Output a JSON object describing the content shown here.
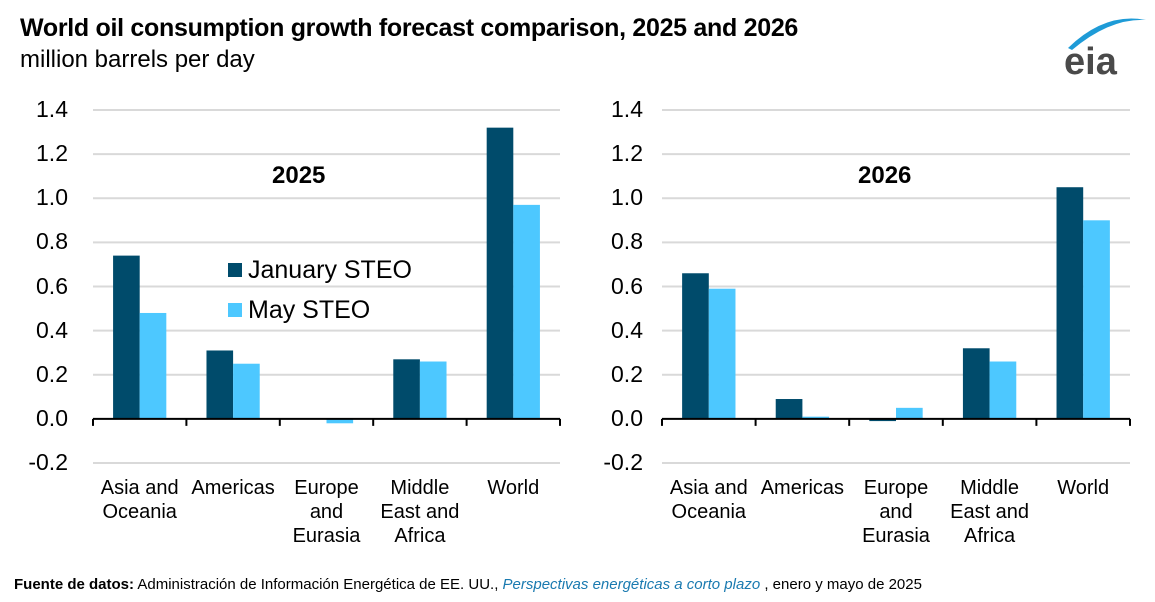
{
  "header": {
    "title": "World oil consumption growth forecast comparison, 2025 and 2026",
    "subtitle": "million barrels per day",
    "logo_text": "eia"
  },
  "colors": {
    "january": "#004b6b",
    "may": "#4dc8ff",
    "grid": "#d9d9d9",
    "axis": "#000000",
    "logo_arc": "#1e9bd7",
    "logo_text": "#4a4a4a"
  },
  "legend": {
    "january_label": "January STEO",
    "may_label": "May STEO"
  },
  "chart_data": [
    {
      "type": "bar",
      "title": "2025",
      "xlabel": "",
      "ylabel": "million barrels per day",
      "ylim": [
        -0.2,
        1.4
      ],
      "yticks": [
        "1.4",
        "1.2",
        "1.0",
        "0.8",
        "0.6",
        "0.4",
        "0.2",
        "0.0",
        "-0.2"
      ],
      "grid": true,
      "legend_position": "center",
      "categories": [
        "Asia and\nOceania",
        "Americas",
        "Europe\nand\nEurasia",
        "Middle\nEast and\nAfrica",
        "World"
      ],
      "series": [
        {
          "name": "January STEO",
          "values": [
            0.74,
            0.31,
            0.0,
            0.27,
            1.32
          ]
        },
        {
          "name": "May STEO",
          "values": [
            0.48,
            0.25,
            -0.02,
            0.26,
            0.97
          ]
        }
      ]
    },
    {
      "type": "bar",
      "title": "2026",
      "xlabel": "",
      "ylabel": "million barrels per day",
      "ylim": [
        -0.2,
        1.4
      ],
      "yticks": [
        "1.4",
        "1.2",
        "1.0",
        "0.8",
        "0.6",
        "0.4",
        "0.2",
        "0.0",
        "-0.2"
      ],
      "grid": true,
      "categories": [
        "Asia and\nOceania",
        "Americas",
        "Europe\nand\nEurasia",
        "Middle\nEast and\nAfrica",
        "World"
      ],
      "series": [
        {
          "name": "January STEO",
          "values": [
            0.66,
            0.09,
            -0.01,
            0.32,
            1.05
          ]
        },
        {
          "name": "May STEO",
          "values": [
            0.59,
            0.01,
            0.05,
            0.26,
            0.9
          ]
        }
      ]
    }
  ],
  "source": {
    "label": "Fuente de datos:",
    "text": " Administración de Información Energética de EE. UU., ",
    "publication": "Perspectivas energéticas a corto plazo",
    "suffix": " , enero y mayo de 2025"
  }
}
